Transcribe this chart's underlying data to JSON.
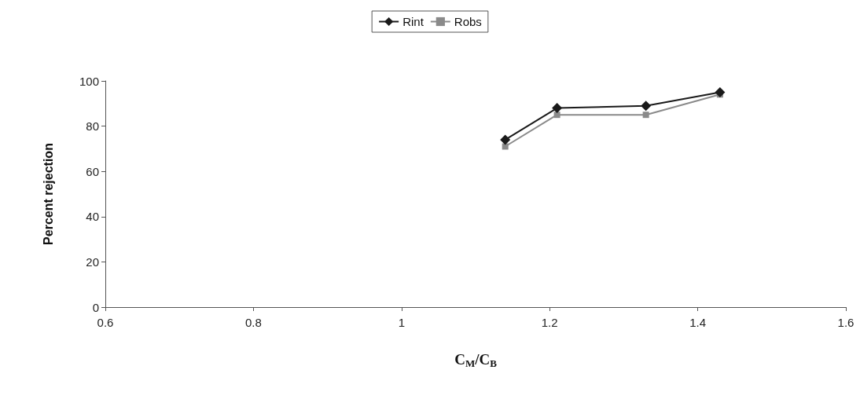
{
  "chart_data": {
    "type": "line",
    "xlabel": "C$_{M}$/C$_{B}$",
    "ylabel": "Percent rejection",
    "x": [
      1.14,
      1.21,
      1.33,
      1.43
    ],
    "series": [
      {
        "name": "Rint",
        "color": "#1a1a1a",
        "marker": "diamond",
        "values": [
          74,
          88,
          89,
          95
        ]
      },
      {
        "name": "Robs",
        "color": "#8a8a8a",
        "marker": "square",
        "values": [
          71,
          85,
          85,
          94
        ]
      }
    ],
    "xlim": [
      0.6,
      1.6
    ],
    "xticks": [
      0.6,
      0.8,
      1,
      1.2,
      1.4,
      1.6
    ],
    "ylim": [
      0,
      100
    ],
    "yticks": [
      0,
      20,
      40,
      60,
      80,
      100
    ],
    "grid": false,
    "legend": "top",
    "line_style": "solid"
  }
}
